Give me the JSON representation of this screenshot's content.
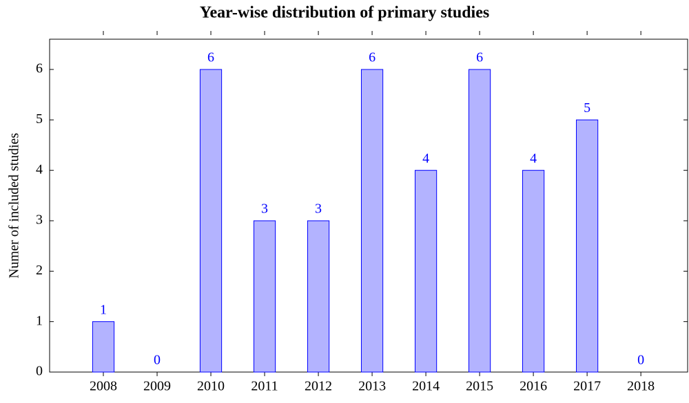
{
  "chart_data": {
    "type": "bar",
    "title": "Year-wise distribution of primary studies",
    "y_label": "Numer of included studies",
    "x": [
      2008,
      2009,
      2010,
      2011,
      2012,
      2013,
      2014,
      2015,
      2016,
      2017,
      2018
    ],
    "values": [
      1,
      0,
      6,
      3,
      3,
      6,
      4,
      6,
      4,
      5,
      0
    ],
    "color": "#b3b3ff",
    "edge_color": "#0000ff",
    "label_color": "#0000ff",
    "xlim": [
      2007,
      2018.87
    ],
    "xticks": [
      2008,
      2009,
      2010,
      2011,
      2012,
      2013,
      2014,
      2015,
      2016,
      2017,
      2018
    ],
    "ylim": [
      0,
      6.6
    ],
    "yticks": [
      0,
      1,
      2,
      3,
      4,
      5,
      6
    ],
    "grid": false
  }
}
